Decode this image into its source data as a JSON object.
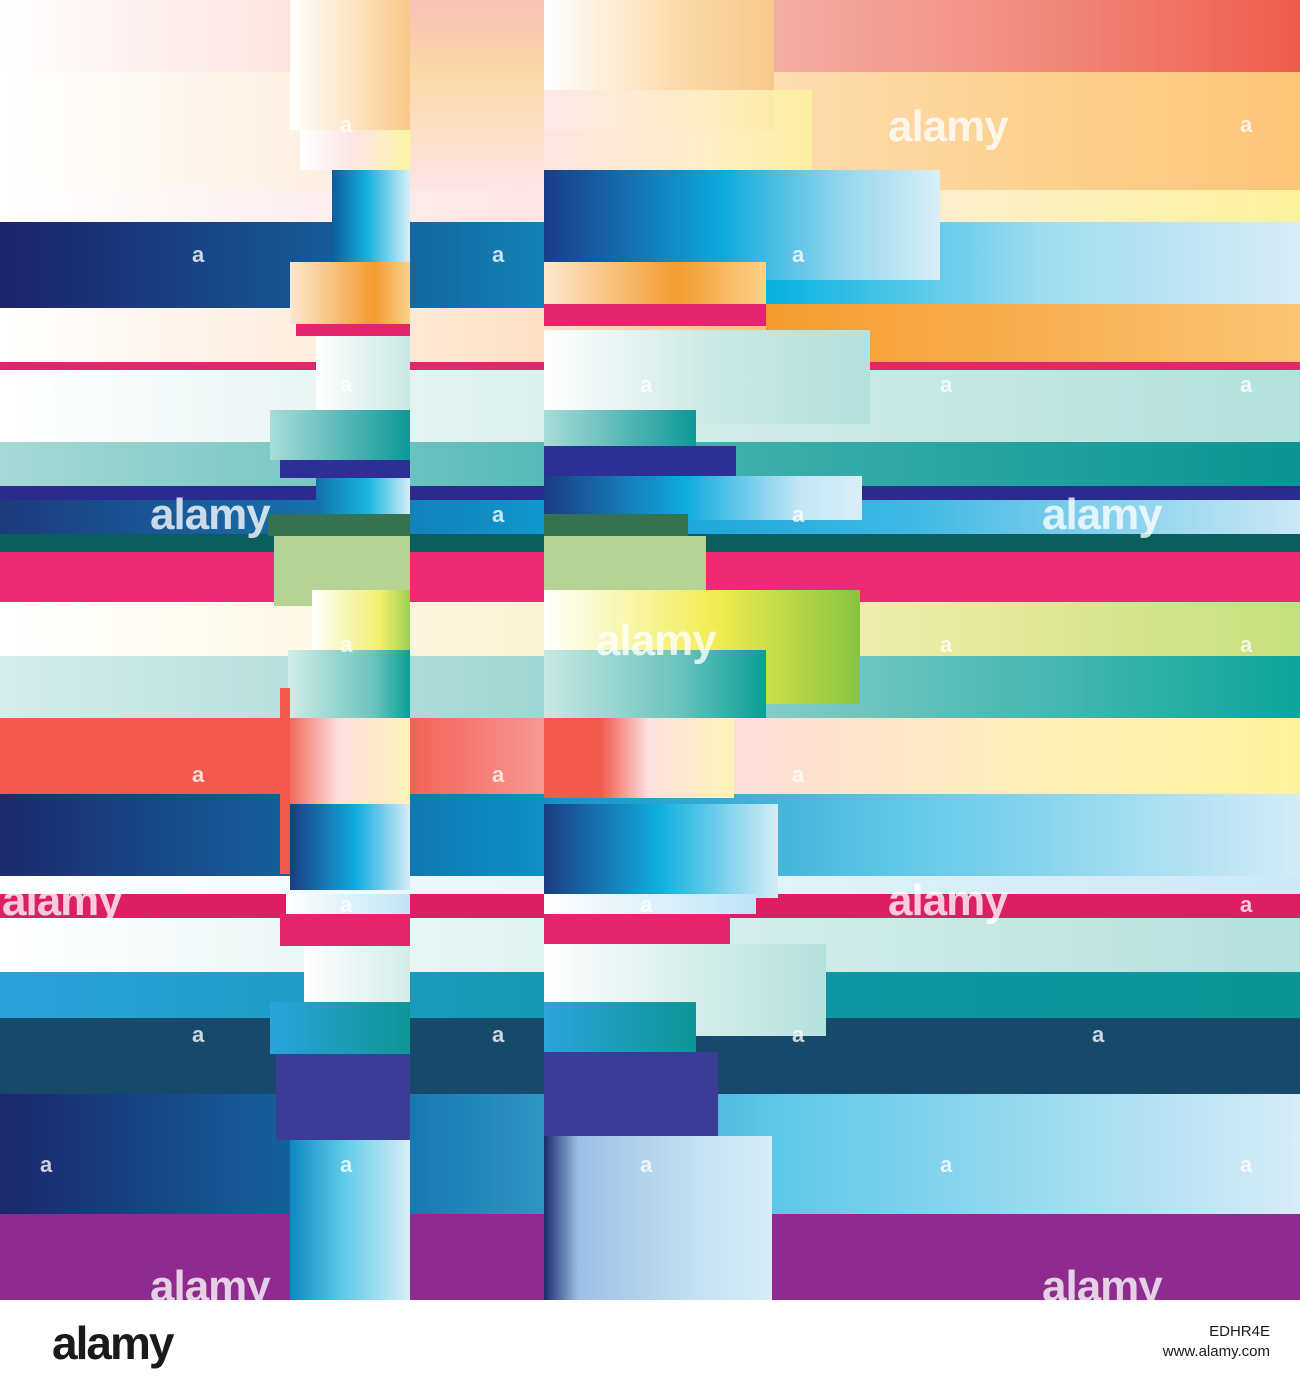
{
  "watermark": {
    "text": "alamy",
    "mark": "a"
  },
  "footer": {
    "logo": "alamy",
    "image_id": "EDHR4E",
    "url": "www.alamy.com"
  },
  "palette": {
    "navy": "#1b2a6b",
    "blue": "#0c9fd4",
    "sky": "#cfe8f5",
    "peach": "#f6c98e",
    "orange": "#f49b2e",
    "coral": "#f25a4e",
    "salmon": "#f3a99a",
    "magenta": "#e6226e",
    "teal": "#0a9594",
    "mint": "#b5e1dd",
    "purple": "#8e2a8f",
    "indigo": "#3a3c95",
    "darkslate": "#174a6a",
    "lime": "#86c542",
    "yellow": "#f6ef9a",
    "green": "#367150",
    "sage": "#b6d294"
  }
}
